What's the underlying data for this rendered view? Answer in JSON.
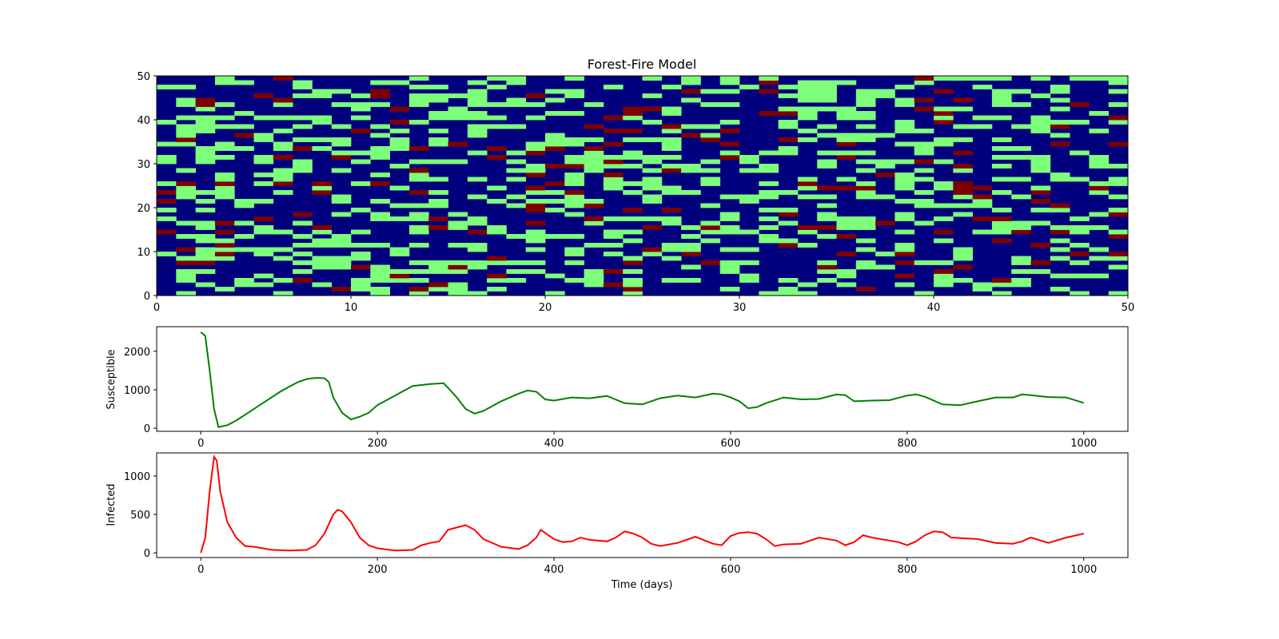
{
  "chart_data": [
    {
      "type": "heatmap",
      "title": "Forest-Fire Model",
      "grid_size": [
        50,
        50
      ],
      "xlim": [
        0,
        50
      ],
      "ylim": [
        0,
        50
      ],
      "xticks": [
        0,
        10,
        20,
        30,
        40,
        50
      ],
      "yticks": [
        0,
        10,
        20,
        30,
        40,
        50
      ],
      "states": [
        "empty",
        "tree",
        "burning"
      ],
      "colors": {
        "empty": "#00007f",
        "tree": "#7dff7a",
        "burning": "#7f0000"
      },
      "tree_density": 0.3,
      "burning_density": 0.06
    },
    {
      "type": "line",
      "ylabel": "Susceptible",
      "color": "#008000",
      "xlim": [
        -50,
        1050
      ],
      "ylim": [
        -80,
        2640
      ],
      "xticks": [
        0,
        200,
        400,
        600,
        800,
        1000
      ],
      "yticks": [
        0,
        1000,
        2000
      ],
      "x": [
        0,
        5,
        10,
        15,
        20,
        30,
        40,
        50,
        60,
        70,
        80,
        90,
        100,
        110,
        120,
        130,
        140,
        145,
        150,
        160,
        170,
        180,
        190,
        200,
        220,
        240,
        260,
        275,
        280,
        290,
        300,
        310,
        320,
        340,
        360,
        370,
        380,
        390,
        400,
        420,
        440,
        460,
        480,
        500,
        520,
        540,
        560,
        580,
        590,
        600,
        610,
        620,
        630,
        640,
        660,
        680,
        700,
        720,
        730,
        740,
        760,
        780,
        800,
        810,
        820,
        840,
        860,
        880,
        900,
        920,
        930,
        940,
        960,
        980,
        1000
      ],
      "values": [
        2500,
        2400,
        1500,
        500,
        30,
        80,
        200,
        350,
        500,
        650,
        800,
        950,
        1080,
        1200,
        1280,
        1310,
        1300,
        1200,
        800,
        400,
        230,
        300,
        400,
        600,
        850,
        1100,
        1150,
        1170,
        1050,
        800,
        500,
        380,
        450,
        700,
        900,
        980,
        950,
        750,
        720,
        800,
        780,
        840,
        650,
        620,
        780,
        850,
        800,
        900,
        880,
        800,
        700,
        520,
        550,
        650,
        800,
        750,
        760,
        880,
        860,
        700,
        720,
        730,
        850,
        880,
        820,
        620,
        600,
        700,
        800,
        800,
        880,
        860,
        810,
        800,
        660
      ]
    },
    {
      "type": "line",
      "ylabel": "Infected",
      "xlabel": "Time (days)",
      "color": "#ff0000",
      "xlim": [
        -50,
        1050
      ],
      "ylim": [
        -60,
        1300
      ],
      "xticks": [
        0,
        200,
        400,
        600,
        800,
        1000
      ],
      "yticks": [
        0,
        500,
        1000
      ],
      "x": [
        0,
        5,
        10,
        15,
        18,
        22,
        30,
        40,
        50,
        60,
        70,
        80,
        100,
        120,
        130,
        140,
        150,
        155,
        160,
        170,
        180,
        190,
        200,
        220,
        240,
        250,
        260,
        270,
        280,
        290,
        300,
        310,
        320,
        340,
        360,
        370,
        380,
        385,
        390,
        400,
        410,
        420,
        430,
        440,
        460,
        470,
        480,
        490,
        500,
        510,
        520,
        540,
        560,
        580,
        590,
        600,
        610,
        620,
        630,
        640,
        650,
        660,
        680,
        700,
        720,
        730,
        740,
        750,
        760,
        780,
        790,
        800,
        810,
        820,
        830,
        840,
        850,
        880,
        900,
        920,
        930,
        940,
        960,
        980,
        1000
      ],
      "values": [
        0,
        200,
        800,
        1250,
        1200,
        800,
        400,
        200,
        90,
        80,
        60,
        40,
        30,
        40,
        100,
        250,
        500,
        560,
        540,
        400,
        200,
        100,
        60,
        30,
        40,
        100,
        130,
        150,
        300,
        330,
        360,
        300,
        180,
        80,
        50,
        100,
        200,
        300,
        260,
        180,
        140,
        150,
        200,
        170,
        150,
        200,
        280,
        250,
        200,
        120,
        90,
        130,
        210,
        120,
        100,
        220,
        260,
        270,
        250,
        180,
        90,
        110,
        120,
        200,
        160,
        100,
        140,
        230,
        200,
        160,
        140,
        100,
        150,
        230,
        280,
        270,
        200,
        180,
        130,
        120,
        150,
        200,
        130,
        200,
        250
      ]
    }
  ]
}
